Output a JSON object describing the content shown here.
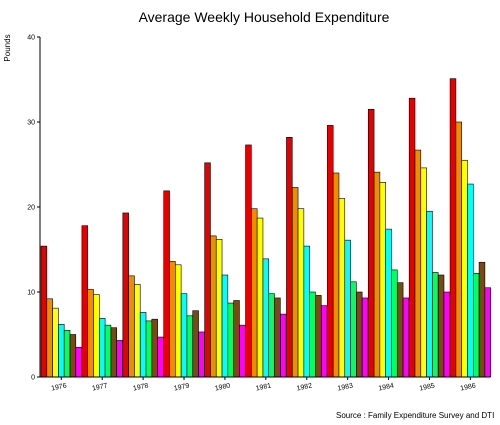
{
  "chart_data": {
    "type": "bar",
    "title": "Average Weekly Household Expenditure",
    "ylabel": "Pounds",
    "xlabel": "",
    "source": "Source : Family Expenditure Survey and DTI",
    "ylim": [
      0,
      40
    ],
    "yticks": [
      0,
      10,
      20,
      30,
      40
    ],
    "grid": false,
    "legend": "none",
    "categories": [
      "1976",
      "1977",
      "1978",
      "1979",
      "1980",
      "1981",
      "1982",
      "1983",
      "1984",
      "1985",
      "1986"
    ],
    "series": [
      {
        "color": "#e80000",
        "values": [
          15.4,
          17.8,
          19.3,
          21.9,
          25.2,
          27.3,
          28.2,
          29.6,
          31.5,
          32.8,
          35.1
        ]
      },
      {
        "color": "#f08c00",
        "values": [
          9.2,
          10.3,
          11.9,
          13.6,
          16.6,
          19.8,
          22.3,
          24.0,
          24.1,
          26.7,
          30.0
        ]
      },
      {
        "color": "#ffff00",
        "values": [
          8.1,
          9.7,
          10.9,
          13.2,
          16.2,
          18.7,
          19.8,
          21.0,
          22.9,
          24.6,
          25.5
        ]
      },
      {
        "color": "#00ffff",
        "values": [
          6.2,
          6.9,
          7.6,
          9.8,
          12.0,
          13.9,
          15.4,
          16.1,
          17.4,
          19.5,
          22.7
        ]
      },
      {
        "color": "#00ff60",
        "values": [
          5.5,
          6.1,
          6.6,
          7.2,
          8.7,
          9.8,
          10.0,
          11.2,
          12.6,
          12.3,
          12.2
        ]
      },
      {
        "color": "#7a4a10",
        "values": [
          5.0,
          5.8,
          6.8,
          7.8,
          9.0,
          9.3,
          9.6,
          10.0,
          11.1,
          12.0,
          13.5
        ]
      },
      {
        "color": "#ff00ff",
        "values": [
          3.5,
          4.3,
          4.7,
          5.3,
          6.1,
          7.4,
          8.4,
          9.3,
          9.3,
          10.0,
          10.5
        ]
      }
    ]
  }
}
